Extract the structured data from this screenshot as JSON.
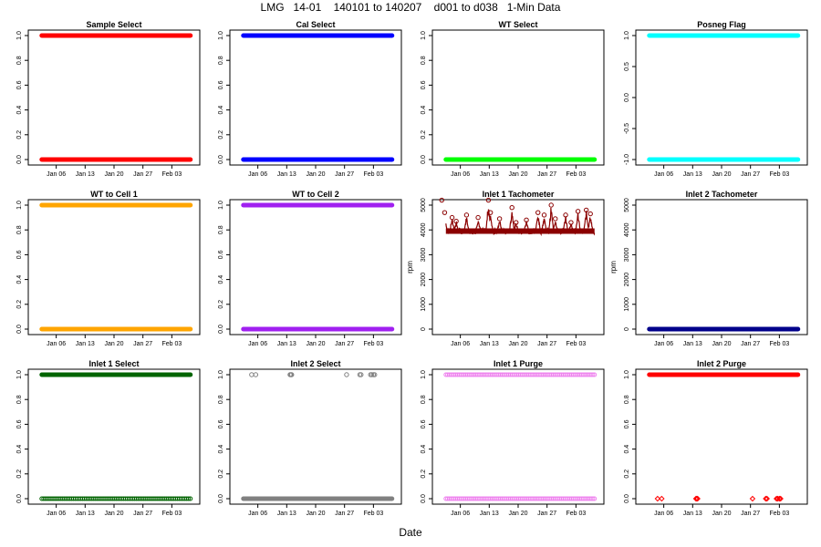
{
  "title": "LMG   14-01    140101 to 140207    d001 to d038   1-Min Data",
  "xlabel": "Date",
  "chart_data": [
    {
      "type": "scatter",
      "title": "Sample Select",
      "ylabel": "",
      "ylim": [
        0,
        1
      ],
      "yticks": [
        "0.0",
        "0.2",
        "0.4",
        "0.6",
        "0.8",
        "1.0"
      ],
      "ytick_values": [
        0,
        0.2,
        0.4,
        0.6,
        0.8,
        1.0
      ],
      "xticks": [
        "Jan 06",
        "Jan 13",
        "Jan 20",
        "Jan 27",
        "Feb 03"
      ],
      "x_range": [
        "140101",
        "140207"
      ],
      "color": "#ff0000",
      "pattern": "binary-dense",
      "levels": [
        0,
        1
      ]
    },
    {
      "type": "scatter",
      "title": "Cal Select",
      "ylabel": "",
      "ylim": [
        0,
        1
      ],
      "yticks": [
        "0.0",
        "0.2",
        "0.4",
        "0.6",
        "0.8",
        "1.0"
      ],
      "ytick_values": [
        0,
        0.2,
        0.4,
        0.6,
        0.8,
        1.0
      ],
      "xticks": [
        "Jan 06",
        "Jan 13",
        "Jan 20",
        "Jan 27",
        "Feb 03"
      ],
      "x_range": [
        "140101",
        "140207"
      ],
      "color": "#0000ff",
      "pattern": "binary-dense",
      "levels": [
        0,
        1
      ]
    },
    {
      "type": "scatter",
      "title": "WT Select",
      "ylabel": "",
      "ylim": [
        0,
        1
      ],
      "yticks": [
        "0.0",
        "0.2",
        "0.4",
        "0.6",
        "0.8",
        "1.0"
      ],
      "ytick_values": [
        0,
        0.2,
        0.4,
        0.6,
        0.8,
        1.0
      ],
      "xticks": [
        "Jan 06",
        "Jan 13",
        "Jan 20",
        "Jan 27",
        "Feb 03"
      ],
      "x_range": [
        "140101",
        "140207"
      ],
      "color": "#00ff00",
      "pattern": "constant",
      "levels": [
        0
      ]
    },
    {
      "type": "scatter",
      "title": "Posneg Flag",
      "ylabel": "",
      "ylim": [
        -1,
        1
      ],
      "yticks": [
        "-1.0",
        "-0.5",
        "0.0",
        "0.5",
        "1.0"
      ],
      "ytick_values": [
        -1,
        -0.5,
        0,
        0.5,
        1.0
      ],
      "xticks": [
        "Jan 06",
        "Jan 13",
        "Jan 20",
        "Jan 27",
        "Feb 03"
      ],
      "x_range": [
        "140101",
        "140207"
      ],
      "color": "#00ffff",
      "pattern": "binary-dense",
      "levels": [
        -1,
        1
      ]
    },
    {
      "type": "scatter",
      "title": "WT to Cell 1",
      "ylabel": "",
      "ylim": [
        0,
        1
      ],
      "yticks": [
        "0.0",
        "0.2",
        "0.4",
        "0.6",
        "0.8",
        "1.0"
      ],
      "ytick_values": [
        0,
        0.2,
        0.4,
        0.6,
        0.8,
        1.0
      ],
      "xticks": [
        "Jan 06",
        "Jan 13",
        "Jan 20",
        "Jan 27",
        "Feb 03"
      ],
      "x_range": [
        "140101",
        "140207"
      ],
      "color": "#ffa500",
      "pattern": "binary-dense",
      "levels": [
        0,
        1
      ]
    },
    {
      "type": "scatter",
      "title": "WT to Cell 2",
      "ylabel": "",
      "ylim": [
        0,
        1
      ],
      "yticks": [
        "0.0",
        "0.2",
        "0.4",
        "0.6",
        "0.8",
        "1.0"
      ],
      "ytick_values": [
        0,
        0.2,
        0.4,
        0.6,
        0.8,
        1.0
      ],
      "xticks": [
        "Jan 06",
        "Jan 13",
        "Jan 20",
        "Jan 27",
        "Feb 03"
      ],
      "x_range": [
        "140101",
        "140207"
      ],
      "color": "#a020f0",
      "pattern": "binary-dense",
      "levels": [
        0,
        1
      ]
    },
    {
      "type": "scatter",
      "title": "Inlet 1 Tachometer",
      "ylabel": "rpm",
      "ylim": [
        0,
        5000
      ],
      "yticks": [
        "0",
        "1000",
        "2000",
        "3000",
        "4000",
        "5000"
      ],
      "ytick_values": [
        0,
        1000,
        2000,
        3000,
        4000,
        5000
      ],
      "xticks": [
        "Jan 06",
        "Jan 13",
        "Jan 20",
        "Jan 27",
        "Feb 03"
      ],
      "x_range": [
        "140101",
        "140207"
      ],
      "color": "#8b0000",
      "pattern": "tach",
      "baseline": 3950,
      "peaks": [
        {
          "day": 0.5,
          "value": 5200
        },
        {
          "day": 1.2,
          "value": 4700
        },
        {
          "day": 3.0,
          "value": 4500
        },
        {
          "day": 4.0,
          "value": 4350
        },
        {
          "day": 6.5,
          "value": 4600
        },
        {
          "day": 9.3,
          "value": 4500
        },
        {
          "day": 11.8,
          "value": 5200
        },
        {
          "day": 12.3,
          "value": 4700
        },
        {
          "day": 14.5,
          "value": 4450
        },
        {
          "day": 17.5,
          "value": 4900
        },
        {
          "day": 18.5,
          "value": 4300
        },
        {
          "day": 21.0,
          "value": 4400
        },
        {
          "day": 23.8,
          "value": 4700
        },
        {
          "day": 25.3,
          "value": 4600
        },
        {
          "day": 27.0,
          "value": 5000
        },
        {
          "day": 28.0,
          "value": 4450
        },
        {
          "day": 30.5,
          "value": 4600
        },
        {
          "day": 31.8,
          "value": 4300
        },
        {
          "day": 33.5,
          "value": 4750
        },
        {
          "day": 35.5,
          "value": 4800
        },
        {
          "day": 36.5,
          "value": 4650
        }
      ]
    },
    {
      "type": "scatter",
      "title": "Inlet 2 Tachometer",
      "ylabel": "rpm",
      "ylim": [
        0,
        5000
      ],
      "yticks": [
        "0",
        "1000",
        "2000",
        "3000",
        "4000",
        "5000"
      ],
      "ytick_values": [
        0,
        1000,
        2000,
        3000,
        4000,
        5000
      ],
      "xticks": [
        "Jan 06",
        "Jan 13",
        "Jan 20",
        "Jan 27",
        "Feb 03"
      ],
      "x_range": [
        "140101",
        "140207"
      ],
      "color": "#00008b",
      "pattern": "constant",
      "levels": [
        0
      ]
    },
    {
      "type": "scatter",
      "title": "Inlet 1 Select",
      "ylabel": "",
      "ylim": [
        0,
        1
      ],
      "yticks": [
        "0.0",
        "0.2",
        "0.4",
        "0.6",
        "0.8",
        "1.0"
      ],
      "ytick_values": [
        0,
        0.2,
        0.4,
        0.6,
        0.8,
        1.0
      ],
      "xticks": [
        "Jan 06",
        "Jan 13",
        "Jan 20",
        "Jan 27",
        "Feb 03"
      ],
      "x_range": [
        "140101",
        "140207"
      ],
      "color": "#006400",
      "pattern": "binary-sparse-low",
      "levels": [
        0,
        1
      ]
    },
    {
      "type": "scatter",
      "title": "Inlet 2 Select",
      "ylabel": "",
      "ylim": [
        0,
        1
      ],
      "yticks": [
        "0.0",
        "0.2",
        "0.4",
        "0.6",
        "0.8",
        "1.0"
      ],
      "ytick_values": [
        0,
        0.2,
        0.4,
        0.6,
        0.8,
        1.0
      ],
      "xticks": [
        "Jan 06",
        "Jan 13",
        "Jan 20",
        "Jan 27",
        "Feb 03"
      ],
      "x_range": [
        "140101",
        "140207"
      ],
      "color": "#808080",
      "pattern": "sparse-high",
      "levels": [
        0,
        1
      ],
      "high_days": [
        3.5,
        4.5,
        12.8,
        13.0,
        13.2,
        26.5,
        29.7,
        30.0,
        32.3,
        32.6,
        33.0,
        33.3
      ]
    },
    {
      "type": "scatter",
      "title": "Inlet 1 Purge",
      "ylabel": "",
      "ylim": [
        0,
        1
      ],
      "yticks": [
        "0.0",
        "0.2",
        "0.4",
        "0.6",
        "0.8",
        "1.0"
      ],
      "ytick_values": [
        0,
        0.2,
        0.4,
        0.6,
        0.8,
        1.0
      ],
      "xticks": [
        "Jan 06",
        "Jan 13",
        "Jan 20",
        "Jan 27",
        "Feb 03"
      ],
      "x_range": [
        "140101",
        "140207"
      ],
      "color": "#ee82ee",
      "pattern": "binary-sparse-both",
      "levels": [
        0,
        1
      ]
    },
    {
      "type": "scatter",
      "title": "Inlet 2 Purge",
      "ylabel": "",
      "ylim": [
        0,
        1
      ],
      "yticks": [
        "0.0",
        "0.2",
        "0.4",
        "0.6",
        "0.8",
        "1.0"
      ],
      "ytick_values": [
        0,
        0.2,
        0.4,
        0.6,
        0.8,
        1.0
      ],
      "xticks": [
        "Jan 06",
        "Jan 13",
        "Jan 20",
        "Jan 27",
        "Feb 03"
      ],
      "x_range": [
        "140101",
        "140207"
      ],
      "color": "#ff0000",
      "pattern": "sparse-low",
      "levels": [
        0,
        1
      ],
      "low_days": [
        3.5,
        4.5,
        12.8,
        13.0,
        13.2,
        26.5,
        29.7,
        30.0,
        32.3,
        32.6,
        33.0,
        33.3
      ]
    }
  ]
}
